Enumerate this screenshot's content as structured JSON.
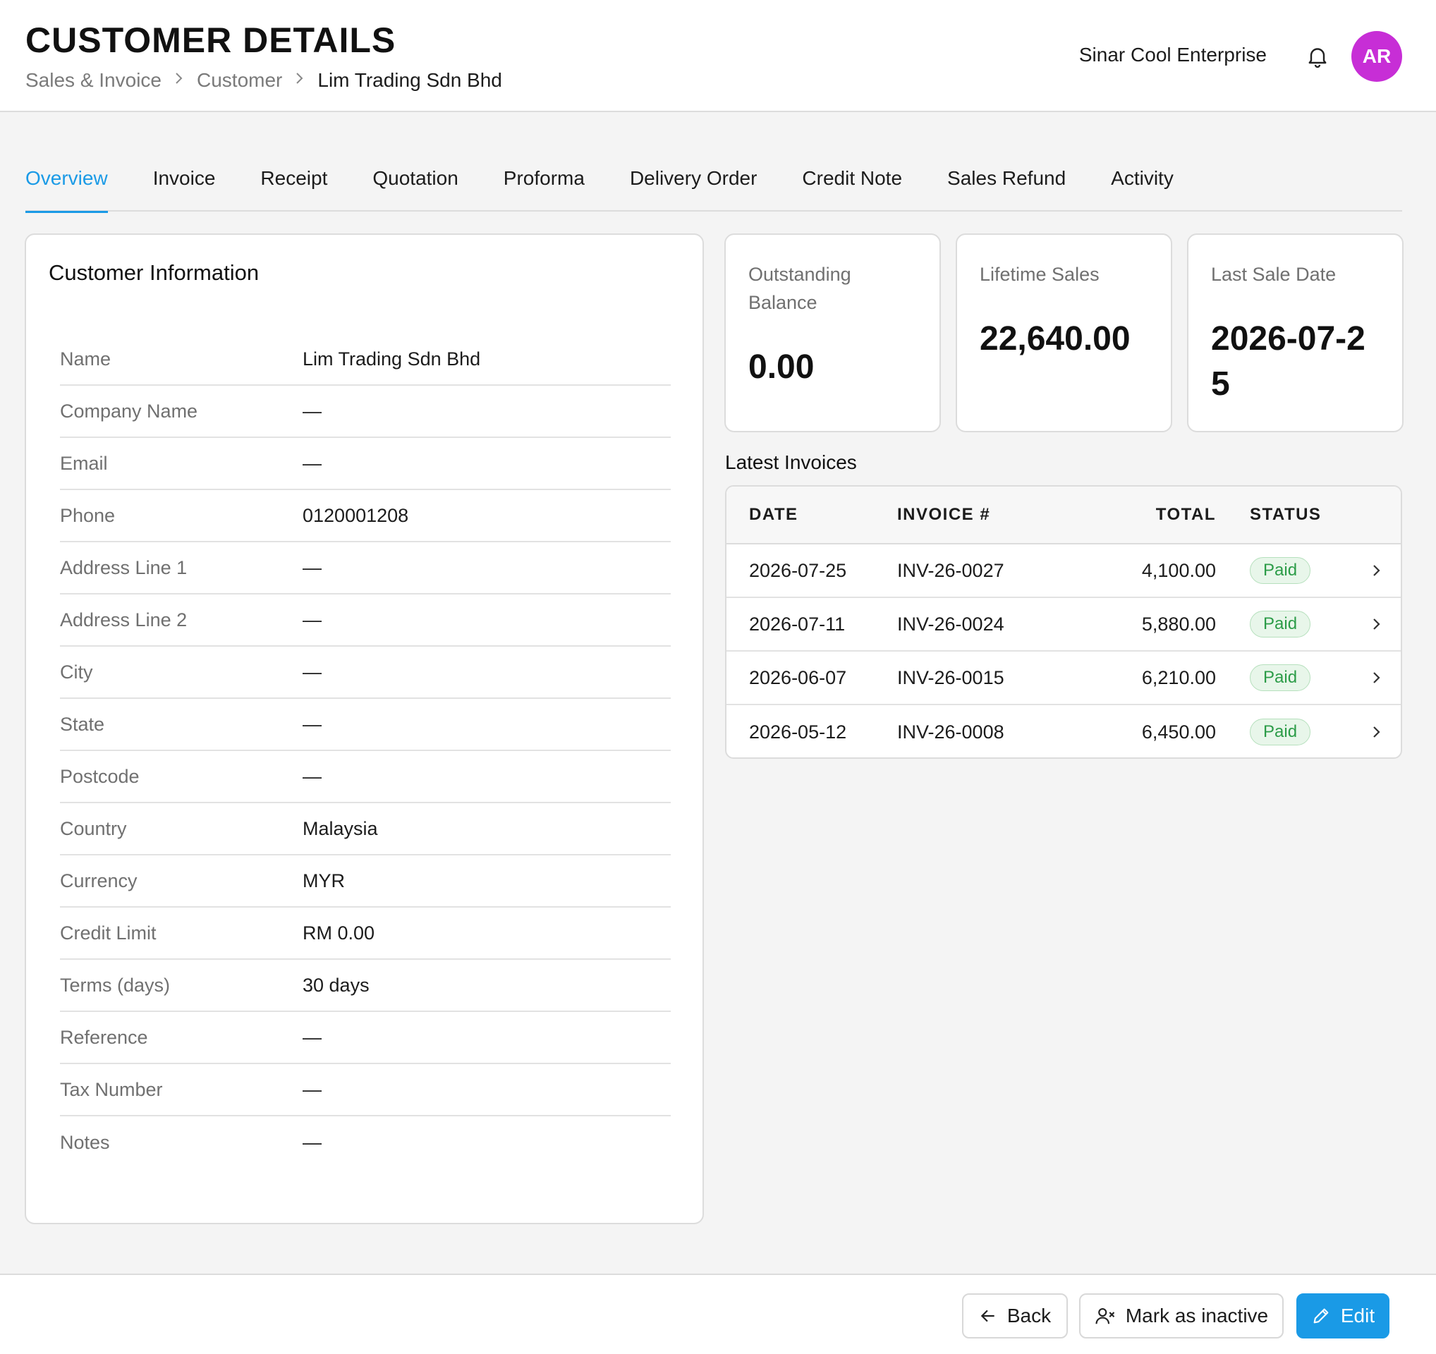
{
  "header": {
    "title": "CUSTOMER DETAILS",
    "breadcrumb": [
      "Sales & Invoice",
      "Customer",
      "Lim Trading Sdn Bhd"
    ],
    "company": "Sinar Cool Enterprise",
    "avatar_initials": "AR",
    "avatar_color": "#c72ed6"
  },
  "tabs": [
    {
      "label": "Overview",
      "active": true
    },
    {
      "label": "Invoice"
    },
    {
      "label": "Receipt"
    },
    {
      "label": "Quotation"
    },
    {
      "label": "Proforma"
    },
    {
      "label": "Delivery Order"
    },
    {
      "label": "Credit Note"
    },
    {
      "label": "Sales Refund"
    },
    {
      "label": "Activity"
    }
  ],
  "customer_info": {
    "title": "Customer Information",
    "fields": [
      {
        "label": "Name",
        "value": "Lim Trading Sdn Bhd"
      },
      {
        "label": "Company Name",
        "value": "—"
      },
      {
        "label": "Email",
        "value": "—"
      },
      {
        "label": "Phone",
        "value": "0120001208"
      },
      {
        "label": "Address Line 1",
        "value": "—"
      },
      {
        "label": "Address Line 2",
        "value": "—"
      },
      {
        "label": "City",
        "value": "—"
      },
      {
        "label": "State",
        "value": "—"
      },
      {
        "label": "Postcode",
        "value": "—"
      },
      {
        "label": "Country",
        "value": "Malaysia"
      },
      {
        "label": "Currency",
        "value": "MYR"
      },
      {
        "label": "Credit Limit",
        "value": "RM 0.00"
      },
      {
        "label": "Terms (days)",
        "value": "30 days"
      },
      {
        "label": "Reference",
        "value": "—"
      },
      {
        "label": "Tax Number",
        "value": "—"
      },
      {
        "label": "Notes",
        "value": "—"
      }
    ]
  },
  "stats": [
    {
      "label": "Outstanding Balance",
      "value": "0.00"
    },
    {
      "label": "Lifetime Sales",
      "value": "22,640.00"
    },
    {
      "label": "Last Sale Date",
      "value": "2026-07-25"
    }
  ],
  "latest_invoices": {
    "title": "Latest Invoices",
    "columns": [
      "DATE",
      "INVOICE #",
      "TOTAL",
      "STATUS"
    ],
    "rows": [
      {
        "date": "2026-07-25",
        "invoice": "INV-26-0027",
        "total": "4,100.00",
        "status": "Paid"
      },
      {
        "date": "2026-07-11",
        "invoice": "INV-26-0024",
        "total": "5,880.00",
        "status": "Paid"
      },
      {
        "date": "2026-06-07",
        "invoice": "INV-26-0015",
        "total": "6,210.00",
        "status": "Paid"
      },
      {
        "date": "2026-05-12",
        "invoice": "INV-26-0008",
        "total": "6,450.00",
        "status": "Paid"
      }
    ],
    "status_color": "#2c9c48"
  },
  "footer": {
    "back_label": "Back",
    "inactive_label": "Mark as inactive",
    "edit_label": "Edit"
  },
  "colors": {
    "accent": "#1a9ae6"
  }
}
